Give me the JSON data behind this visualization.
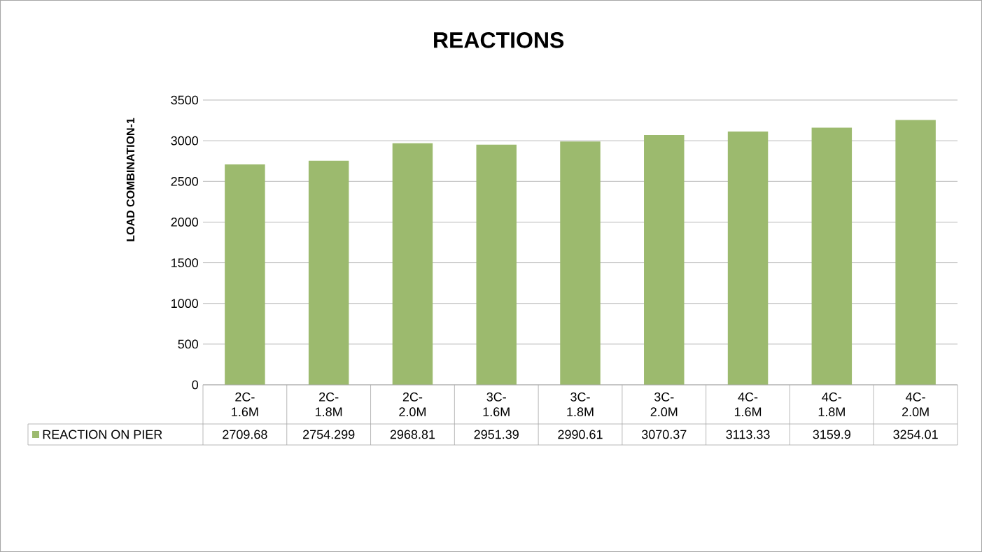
{
  "chart_data": {
    "type": "bar",
    "title": "REACTIONS",
    "ylabel": "LOAD COMBINATION-1",
    "categories": [
      "2C-1.6M",
      "2C-1.8M",
      "2C-2.0M",
      "3C-1.6M",
      "3C-1.8M",
      "3C-2.0M",
      "4C-1.6M",
      "4C-1.8M",
      "4C-2.0M"
    ],
    "series": [
      {
        "name": "REACTION ON PIER",
        "color": "#9cba6e",
        "values": [
          2709.68,
          2754.299,
          2968.81,
          2951.39,
          2990.61,
          3070.37,
          3113.33,
          3159.9,
          3254.01
        ]
      }
    ],
    "ylim": [
      0,
      3500
    ],
    "yticks": [
      0,
      500,
      1000,
      1500,
      2000,
      2500,
      3000,
      3500
    ],
    "grid": "y",
    "legend": "bottom",
    "data_labels": true
  }
}
